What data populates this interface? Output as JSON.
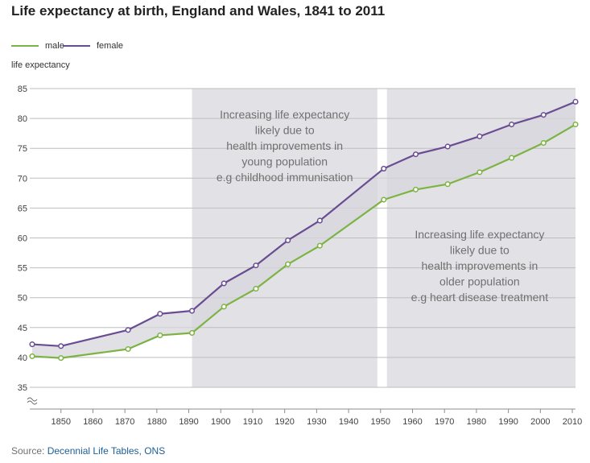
{
  "title": "Life expectancy at birth, England and Wales, 1841 to 2011",
  "legend": [
    {
      "label": "male",
      "color": "#7cb342"
    },
    {
      "label": "female",
      "color": "#6a4c93"
    }
  ],
  "ylabel": "life expectancy",
  "source": {
    "prefix": "Source: ",
    "link_text": "Decennial Life Tables, ONS"
  },
  "chart_data": {
    "type": "line",
    "title": "Life expectancy at birth, England and Wales, 1841 to 2011",
    "xlabel": "",
    "ylabel": "life expectancy",
    "ylim": [
      35,
      85
    ],
    "xlim": [
      1841,
      2011
    ],
    "y_ticks": [
      35,
      40,
      45,
      50,
      55,
      60,
      65,
      70,
      75,
      80,
      85
    ],
    "x_ticks": [
      1850,
      1860,
      1870,
      1880,
      1890,
      1900,
      1910,
      1920,
      1930,
      1940,
      1950,
      1960,
      1970,
      1980,
      1990,
      2000,
      2010
    ],
    "grid": "horizontal",
    "legend_position": "top-left",
    "y_axis_break": true,
    "x": [
      1841,
      1850,
      1871,
      1881,
      1891,
      1901,
      1911,
      1921,
      1931,
      1951,
      1961,
      1971,
      1981,
      1991,
      2001,
      2011
    ],
    "series": [
      {
        "name": "male",
        "color": "#7cb342",
        "values": [
          40.2,
          39.9,
          41.4,
          43.7,
          44.1,
          48.5,
          51.5,
          55.6,
          58.7,
          66.4,
          68.1,
          69.0,
          71.0,
          73.4,
          75.9,
          79.0
        ]
      },
      {
        "name": "female",
        "color": "#6a4c93",
        "values": [
          42.2,
          41.9,
          44.6,
          47.3,
          47.8,
          52.4,
          55.4,
          59.6,
          62.9,
          71.6,
          74.0,
          75.3,
          77.0,
          79.0,
          80.6,
          82.8
        ]
      }
    ],
    "shaded_regions": [
      {
        "start": 1891,
        "end": 1949,
        "lines": [
          "Increasing life expectancy",
          "likely due to",
          "health improvements in",
          "young population",
          "e.g childhood immunisation"
        ]
      },
      {
        "start": 1952,
        "end": 2011,
        "lines": [
          "Increasing life expectancy",
          "likely due to",
          "health improvements in",
          "older population",
          "e.g heart disease treatment"
        ]
      }
    ]
  }
}
